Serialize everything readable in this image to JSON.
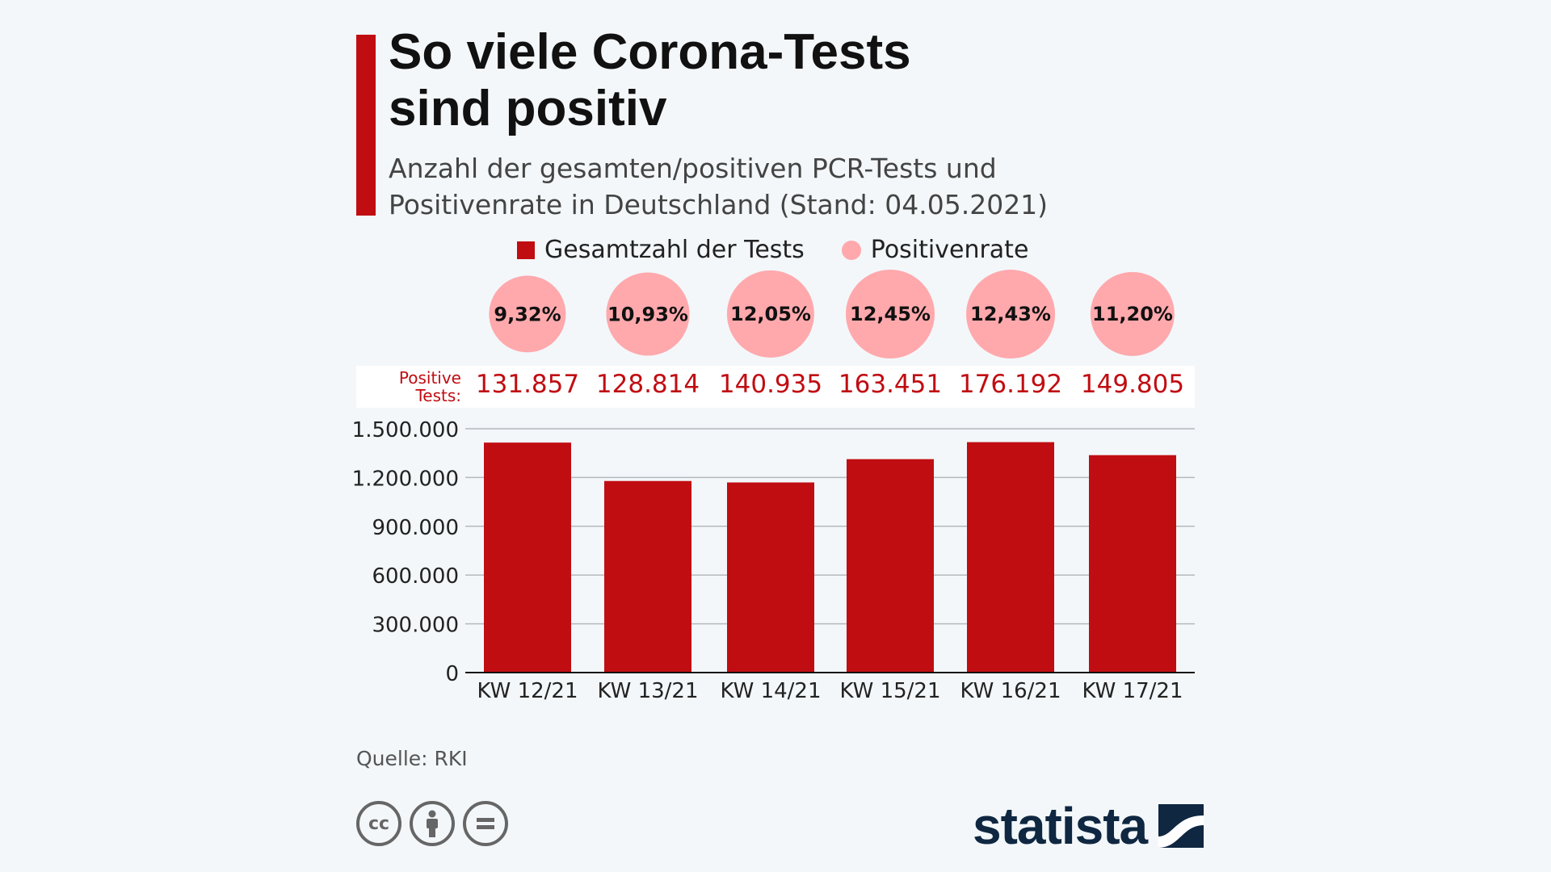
{
  "title_line1": "So viele Corona-Tests",
  "title_line2": "sind positiv",
  "subtitle_line1": "Anzahl der gesamten/positiven PCR-Tests und",
  "subtitle_line2": "Positivenrate in Deutschland (Stand: 04.05.2021)",
  "positive_label_line1": "Positive",
  "positive_label_line2": "Tests:",
  "source": "Quelle: RKI",
  "logo": "statista",
  "license_icons": [
    "cc-icon",
    "by-icon",
    "nd-icon"
  ],
  "colors": {
    "bar": "#c00d12",
    "rate": "#ffa9ad",
    "background": "#f3f7fa"
  },
  "chart_data": {
    "type": "bar",
    "title": "So viele Corona-Tests sind positiv",
    "categories": [
      "KW 12/21",
      "KW 13/21",
      "KW 14/21",
      "KW 15/21",
      "KW 16/21",
      "KW 17/21"
    ],
    "series": [
      {
        "name": "Gesamtzahl der Tests",
        "values": [
          1414800,
          1178500,
          1169600,
          1312900,
          1417500,
          1337500
        ]
      },
      {
        "name": "Positivenrate",
        "values": [
          9.32,
          10.93,
          12.05,
          12.45,
          12.43,
          11.2
        ],
        "labels": [
          "9,32%",
          "10,93%",
          "12,05%",
          "12,45%",
          "12,43%",
          "11,20%"
        ]
      },
      {
        "name": "Positive Tests",
        "values": [
          131857,
          128814,
          140935,
          163451,
          176192,
          149805
        ],
        "labels": [
          "131.857",
          "128.814",
          "140.935",
          "163.451",
          "176.192",
          "149.805"
        ]
      }
    ],
    "legend": [
      "Gesamtzahl der Tests",
      "Positivenrate"
    ],
    "legend_position": "top",
    "yticks": [
      0,
      300000,
      600000,
      900000,
      1200000,
      1500000
    ],
    "ytick_labels": [
      "0",
      "300.000",
      "600.000",
      "900.000",
      "1.200.000",
      "1.500.000"
    ],
    "ylim": [
      0,
      1500000
    ],
    "grid": true,
    "xlabel": "",
    "ylabel": ""
  }
}
